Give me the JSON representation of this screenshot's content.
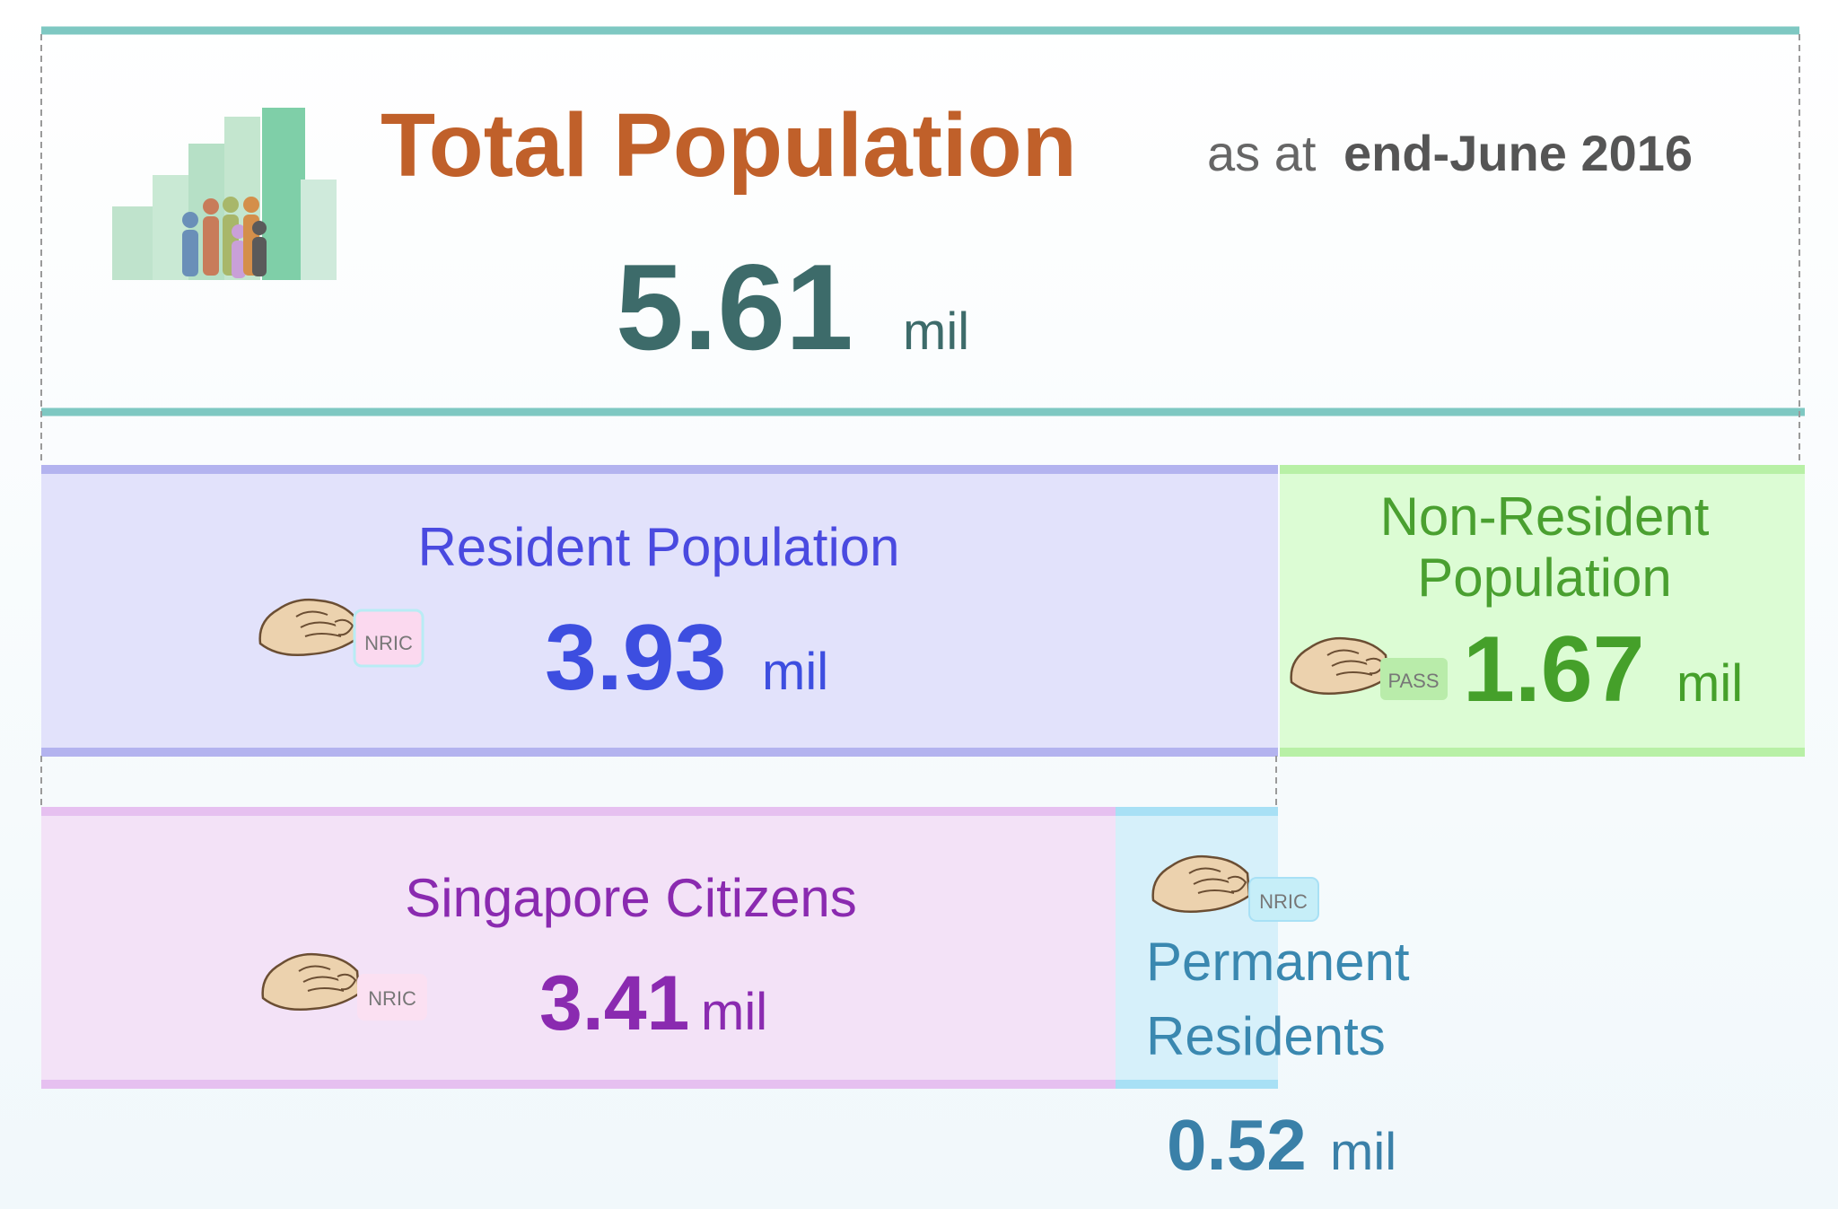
{
  "header": {
    "title": "Total Population",
    "subtitle_prefix": "as at",
    "subtitle_date": "end-June 2016",
    "value": 5.61,
    "unit": "mil"
  },
  "boxes": [
    {
      "label": "Resident Population",
      "value": 3.93,
      "unit": "mil",
      "card": "NRIC"
    },
    {
      "label": [
        "Non-Resident",
        "Population"
      ],
      "value": 1.67,
      "unit": "mil",
      "card": "PASS"
    },
    {
      "label": "Singapore Citizens",
      "value": 3.41,
      "unit": "mil",
      "card": "NRIC"
    },
    {
      "label": [
        "Permanent",
        "Residents"
      ],
      "value": 0.52,
      "unit": "mil",
      "card": "NRIC"
    }
  ]
}
